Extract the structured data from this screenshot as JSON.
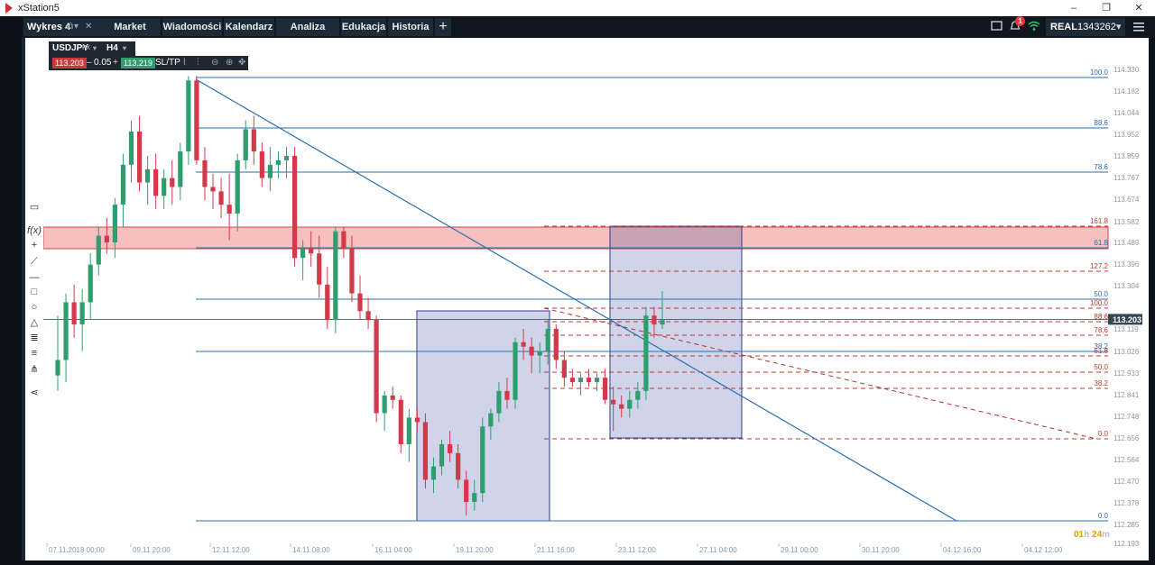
{
  "app": {
    "title": "xStation5"
  },
  "window_controls": [
    "–",
    "❐",
    "✕"
  ],
  "nav": {
    "chart_tab": "Wykres 4",
    "items": [
      "Market Watch",
      "Wiadomości",
      "Kalendarz",
      "Analiza rynku",
      "Edukacja",
      "Historia"
    ],
    "plus": "+"
  },
  "account": {
    "mode": "REAL",
    "number": "1343262",
    "notifications": "1"
  },
  "symbol": {
    "name": "USDJPY",
    "type": "FX",
    "timeframe": "H4"
  },
  "quote": {
    "sell": "113.203",
    "spread_minus": "–",
    "spread": "0.05",
    "spread_plus": "+",
    "buy": "113.219",
    "sltp": "SL/TP"
  },
  "colors": {
    "bull": "#2e9e6e",
    "bear": "#d03a4a",
    "box": "#2b3aa0",
    "zone": "#f08080",
    "fib_blue": "#2a6fb0",
    "fib_red": "#c0392b",
    "price_label": "#37474f"
  },
  "chart_data": {
    "type": "candlestick",
    "instrument": "USDJPY",
    "timeframe": "H4",
    "current_price": "113.203",
    "countdown": {
      "hours": "01",
      "h": "h",
      "minutes": "24",
      "m": "m"
    },
    "y_ticks": [
      "114.330",
      "114.182",
      "114.044",
      "113.952",
      "113.859",
      "113.767",
      "113.674",
      "113.582",
      "113.489",
      "113.396",
      "113.304",
      "113.119",
      "113.026",
      "112.933",
      "112.841",
      "112.748",
      "112.656",
      "112.564",
      "112.470",
      "112.378",
      "112.285",
      "112.193"
    ],
    "x_ticks": [
      "07.11.2018 00:00",
      "09.11 20:00",
      "12.11 12:00",
      "14.11 08:00",
      "16.11 04:00",
      "19.11 20:00",
      "21.11 16:00",
      "23.11 12:00",
      "27.11 04:00",
      "29.11 00:00",
      "30.11 20:00",
      "04.12 16:00",
      "04.12 12:00"
    ],
    "fib_blue_levels": [
      "100.0",
      "88.6",
      "78.6",
      "61.8",
      "50.0",
      "38.2",
      "0.0"
    ],
    "fib_red_levels": [
      "161.8",
      "127.2",
      "100.0",
      "88.6",
      "78.6",
      "61.8",
      "50.0",
      "38.2",
      "0.0"
    ],
    "candles": [
      {
        "o": 112.95,
        "h": 113.22,
        "l": 112.88,
        "c": 113.02
      },
      {
        "o": 113.02,
        "h": 113.32,
        "l": 112.92,
        "c": 113.28
      },
      {
        "o": 113.28,
        "h": 113.36,
        "l": 113.12,
        "c": 113.18
      },
      {
        "o": 113.18,
        "h": 113.34,
        "l": 113.06,
        "c": 113.28
      },
      {
        "o": 113.28,
        "h": 113.5,
        "l": 113.2,
        "c": 113.45
      },
      {
        "o": 113.45,
        "h": 113.62,
        "l": 113.4,
        "c": 113.58
      },
      {
        "o": 113.58,
        "h": 113.66,
        "l": 113.5,
        "c": 113.55
      },
      {
        "o": 113.55,
        "h": 113.75,
        "l": 113.48,
        "c": 113.72
      },
      {
        "o": 113.72,
        "h": 113.95,
        "l": 113.62,
        "c": 113.9
      },
      {
        "o": 113.9,
        "h": 114.1,
        "l": 113.82,
        "c": 114.05
      },
      {
        "o": 114.05,
        "h": 114.12,
        "l": 113.78,
        "c": 113.82
      },
      {
        "o": 113.82,
        "h": 113.94,
        "l": 113.72,
        "c": 113.88
      },
      {
        "o": 113.88,
        "h": 113.95,
        "l": 113.7,
        "c": 113.76
      },
      {
        "o": 113.76,
        "h": 113.88,
        "l": 113.7,
        "c": 113.84
      },
      {
        "o": 113.84,
        "h": 113.92,
        "l": 113.72,
        "c": 113.8
      },
      {
        "o": 113.8,
        "h": 114.0,
        "l": 113.74,
        "c": 113.96
      },
      {
        "o": 113.96,
        "h": 114.3,
        "l": 113.9,
        "c": 114.28
      },
      {
        "o": 114.28,
        "h": 114.3,
        "l": 113.9,
        "c": 113.92
      },
      {
        "o": 113.92,
        "h": 113.98,
        "l": 113.74,
        "c": 113.8
      },
      {
        "o": 113.8,
        "h": 113.86,
        "l": 113.7,
        "c": 113.78
      },
      {
        "o": 113.78,
        "h": 113.84,
        "l": 113.66,
        "c": 113.72
      },
      {
        "o": 113.72,
        "h": 113.86,
        "l": 113.56,
        "c": 113.68
      },
      {
        "o": 113.68,
        "h": 113.95,
        "l": 113.6,
        "c": 113.92
      },
      {
        "o": 113.92,
        "h": 114.1,
        "l": 113.88,
        "c": 114.06
      },
      {
        "o": 114.06,
        "h": 114.12,
        "l": 113.9,
        "c": 113.96
      },
      {
        "o": 113.96,
        "h": 114.0,
        "l": 113.8,
        "c": 113.84
      },
      {
        "o": 113.84,
        "h": 113.98,
        "l": 113.78,
        "c": 113.9
      },
      {
        "o": 113.9,
        "h": 113.96,
        "l": 113.84,
        "c": 113.92
      },
      {
        "o": 113.92,
        "h": 113.98,
        "l": 113.84,
        "c": 113.94
      },
      {
        "o": 113.94,
        "h": 113.98,
        "l": 113.44,
        "c": 113.48
      },
      {
        "o": 113.48,
        "h": 113.56,
        "l": 113.38,
        "c": 113.52
      },
      {
        "o": 113.52,
        "h": 113.6,
        "l": 113.44,
        "c": 113.5
      },
      {
        "o": 113.5,
        "h": 113.58,
        "l": 113.3,
        "c": 113.36
      },
      {
        "o": 113.36,
        "h": 113.44,
        "l": 113.16,
        "c": 113.2
      },
      {
        "o": 113.2,
        "h": 113.62,
        "l": 113.14,
        "c": 113.6
      },
      {
        "o": 113.6,
        "h": 113.62,
        "l": 113.48,
        "c": 113.52
      },
      {
        "o": 113.52,
        "h": 113.58,
        "l": 113.28,
        "c": 113.32
      },
      {
        "o": 113.32,
        "h": 113.4,
        "l": 113.2,
        "c": 113.24
      },
      {
        "o": 113.24,
        "h": 113.3,
        "l": 113.16,
        "c": 113.2
      },
      {
        "o": 113.2,
        "h": 113.22,
        "l": 112.74,
        "c": 112.78
      },
      {
        "o": 112.78,
        "h": 112.88,
        "l": 112.7,
        "c": 112.86
      },
      {
        "o": 112.86,
        "h": 112.9,
        "l": 112.8,
        "c": 112.84
      },
      {
        "o": 112.84,
        "h": 112.86,
        "l": 112.6,
        "c": 112.64
      },
      {
        "o": 112.64,
        "h": 112.8,
        "l": 112.56,
        "c": 112.76
      },
      {
        "o": 112.76,
        "h": 112.8,
        "l": 112.7,
        "c": 112.74
      },
      {
        "o": 112.74,
        "h": 112.78,
        "l": 112.44,
        "c": 112.48
      },
      {
        "o": 112.48,
        "h": 112.58,
        "l": 112.42,
        "c": 112.54
      },
      {
        "o": 112.54,
        "h": 112.66,
        "l": 112.5,
        "c": 112.64
      },
      {
        "o": 112.64,
        "h": 112.7,
        "l": 112.56,
        "c": 112.6
      },
      {
        "o": 112.6,
        "h": 112.64,
        "l": 112.44,
        "c": 112.48
      },
      {
        "o": 112.48,
        "h": 112.52,
        "l": 112.32,
        "c": 112.38
      },
      {
        "o": 112.38,
        "h": 112.48,
        "l": 112.34,
        "c": 112.42
      },
      {
        "o": 112.42,
        "h": 112.76,
        "l": 112.38,
        "c": 112.72
      },
      {
        "o": 112.72,
        "h": 112.8,
        "l": 112.66,
        "c": 112.78
      },
      {
        "o": 112.78,
        "h": 112.92,
        "l": 112.74,
        "c": 112.88
      },
      {
        "o": 112.88,
        "h": 112.94,
        "l": 112.8,
        "c": 112.84
      },
      {
        "o": 112.84,
        "h": 113.12,
        "l": 112.8,
        "c": 113.1
      },
      {
        "o": 113.1,
        "h": 113.16,
        "l": 113.02,
        "c": 113.08
      },
      {
        "o": 113.08,
        "h": 113.12,
        "l": 112.96,
        "c": 113.04
      },
      {
        "o": 113.04,
        "h": 113.1,
        "l": 112.96,
        "c": 113.06
      },
      {
        "o": 113.06,
        "h": 113.2,
        "l": 113.0,
        "c": 113.16
      },
      {
        "o": 113.16,
        "h": 113.18,
        "l": 112.98,
        "c": 113.02
      },
      {
        "o": 113.02,
        "h": 113.06,
        "l": 112.9,
        "c": 112.94
      },
      {
        "o": 112.94,
        "h": 112.98,
        "l": 112.9,
        "c": 112.92
      },
      {
        "o": 112.92,
        "h": 112.96,
        "l": 112.86,
        "c": 112.94
      },
      {
        "o": 112.94,
        "h": 112.98,
        "l": 112.9,
        "c": 112.92
      },
      {
        "o": 112.92,
        "h": 112.96,
        "l": 112.88,
        "c": 112.94
      },
      {
        "o": 112.94,
        "h": 112.98,
        "l": 112.82,
        "c": 112.84
      },
      {
        "o": 112.84,
        "h": 112.9,
        "l": 112.7,
        "c": 112.82
      },
      {
        "o": 112.82,
        "h": 112.86,
        "l": 112.76,
        "c": 112.8
      },
      {
        "o": 112.8,
        "h": 112.88,
        "l": 112.76,
        "c": 112.84
      },
      {
        "o": 112.84,
        "h": 112.92,
        "l": 112.8,
        "c": 112.88
      },
      {
        "o": 112.88,
        "h": 113.26,
        "l": 112.84,
        "c": 113.22
      },
      {
        "o": 113.22,
        "h": 113.26,
        "l": 113.12,
        "c": 113.18
      },
      {
        "o": 113.18,
        "h": 113.33,
        "l": 113.16,
        "c": 113.2
      }
    ]
  }
}
